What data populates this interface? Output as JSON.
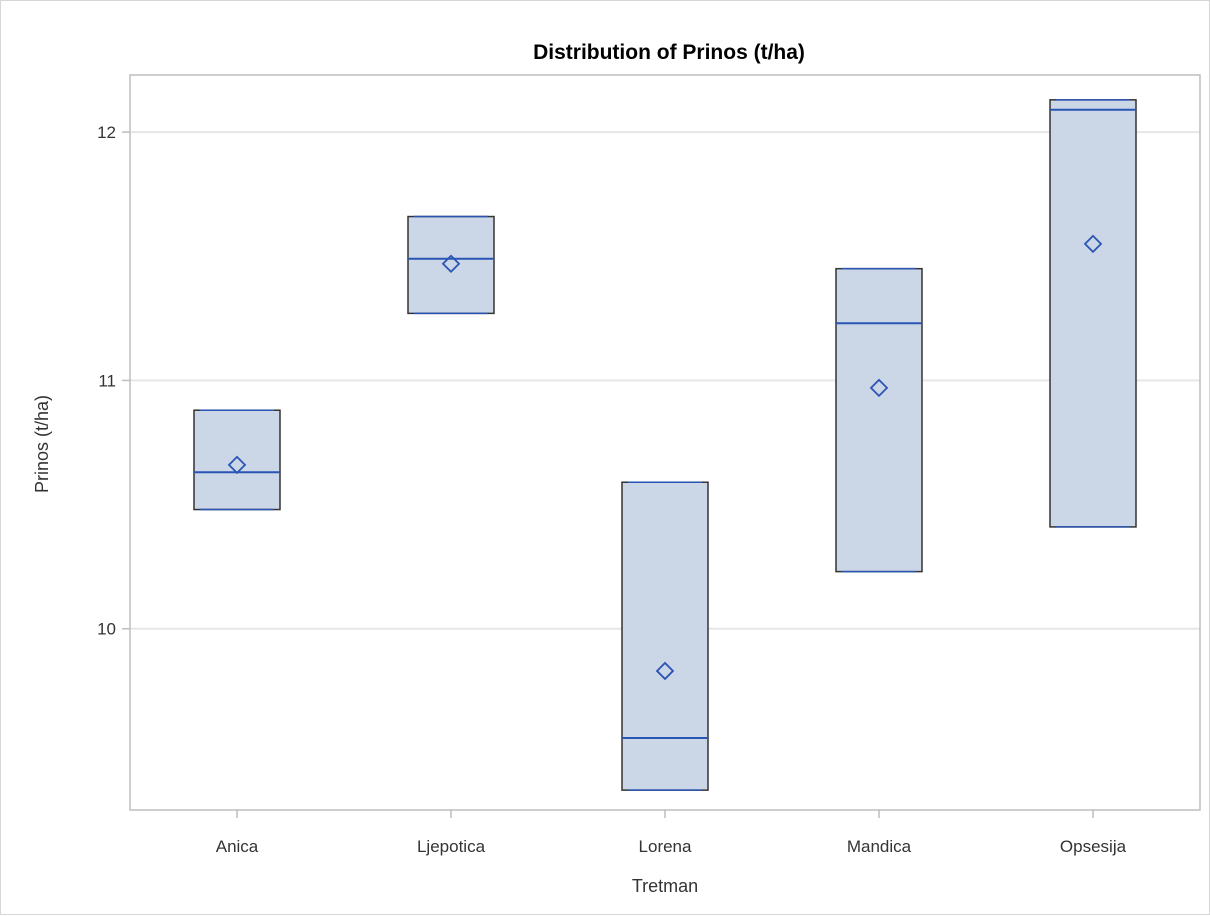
{
  "chart_data": {
    "type": "box",
    "title": "Distribution of Prinos (t/ha)",
    "xlabel": "Tretman",
    "ylabel": "Prinos (t/ha)",
    "ylim": [
      9.27,
      12.23
    ],
    "yticks": [
      10,
      11,
      12
    ],
    "grid": true,
    "legend": "none",
    "categories": [
      "Anica",
      "Ljepotica",
      "Lorena",
      "Mandica",
      "Opsesija"
    ],
    "boxes": [
      {
        "category": "Anica",
        "min": 10.48,
        "q1": 10.48,
        "median": 10.63,
        "q3": 10.88,
        "max": 10.88,
        "mean": 10.66
      },
      {
        "category": "Ljepotica",
        "min": 11.27,
        "q1": 11.27,
        "median": 11.49,
        "q3": 11.66,
        "max": 11.66,
        "mean": 11.47
      },
      {
        "category": "Lorena",
        "min": 9.35,
        "q1": 9.35,
        "median": 9.56,
        "q3": 10.59,
        "max": 10.59,
        "mean": 9.83
      },
      {
        "category": "Mandica",
        "min": 10.23,
        "q1": 10.23,
        "median": 11.23,
        "q3": 11.45,
        "max": 11.45,
        "mean": 10.97
      },
      {
        "category": "Opsesija",
        "min": 10.41,
        "q1": 10.41,
        "median": 12.09,
        "q3": 12.13,
        "max": 12.13,
        "mean": 11.55
      }
    ],
    "colors": {
      "box_fill": "#cbd6e7",
      "box_outline": "#333333",
      "line": "#2b55b5",
      "grid": "#e6e6e6",
      "frame": "#bdbdbd",
      "text": "#333333"
    }
  }
}
